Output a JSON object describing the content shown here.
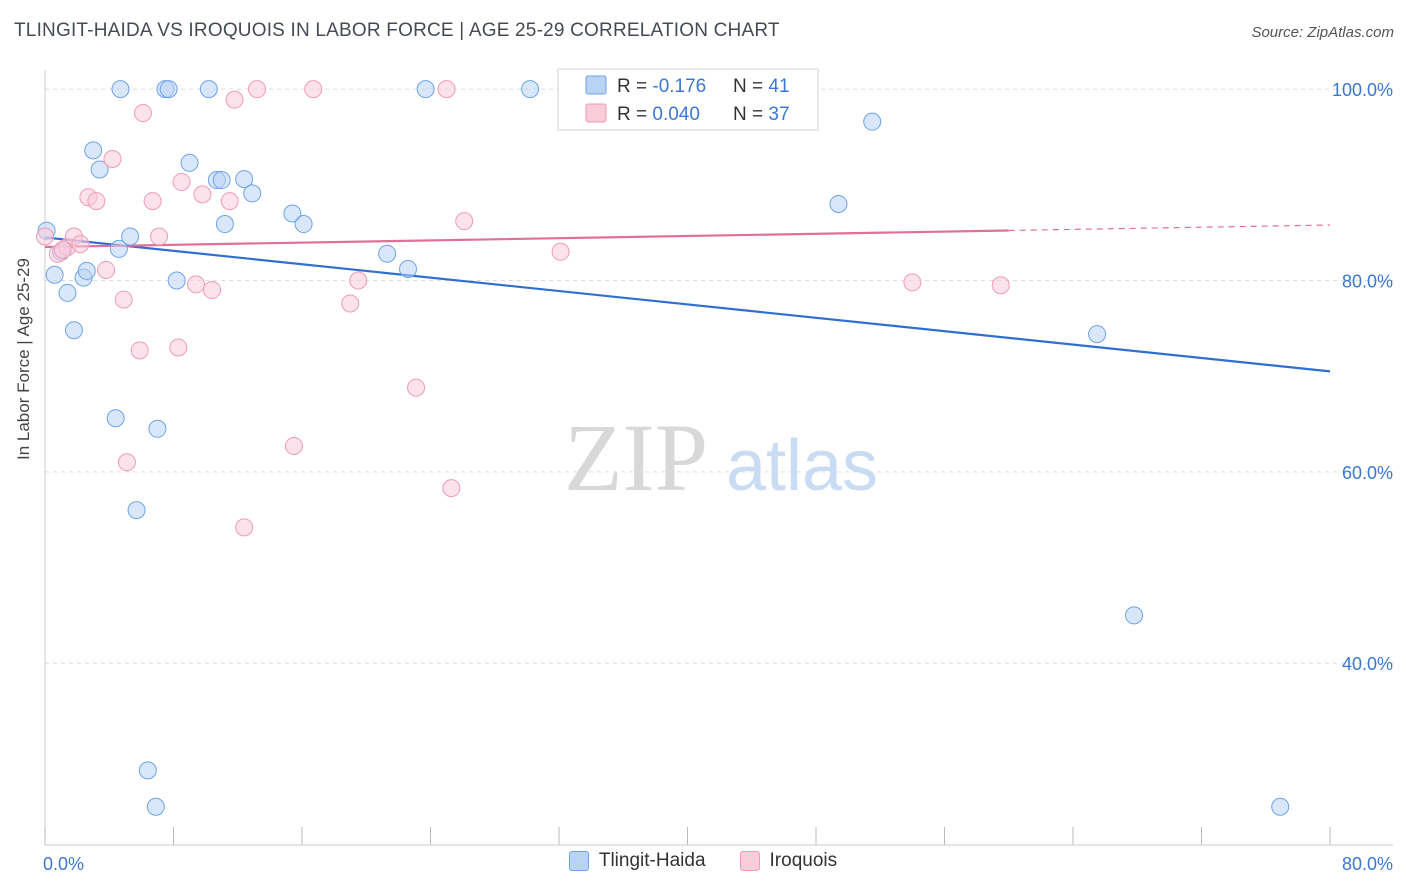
{
  "header": {
    "title": "TLINGIT-HAIDA VS IROQUOIS IN LABOR FORCE | AGE 25-29 CORRELATION CHART",
    "source": "Source: ZipAtlas.com"
  },
  "watermark": {
    "zip": "ZIP",
    "atlas": "atlas"
  },
  "legend_box": {
    "rows": [
      {
        "r_label": "R = ",
        "r_value": "-0.176",
        "n_label": "N = ",
        "n_value": "41"
      },
      {
        "r_label": "R = ",
        "r_value": "0.040",
        "n_label": "N = ",
        "n_value": "37"
      }
    ]
  },
  "chart_data": {
    "type": "scatter",
    "title": "TLINGIT-HAIDA VS IROQUOIS IN LABOR FORCE | AGE 25-29 CORRELATION CHART",
    "xlabel": "",
    "ylabel": "In Labor Force | Age 25-29",
    "xlim": [
      0,
      80
    ],
    "ylim": [
      21,
      102
    ],
    "x_tick_labels": [
      "0.0%",
      "80.0%"
    ],
    "y_ticks": [
      40,
      60,
      80,
      100
    ],
    "y_tick_labels": [
      "40.0%",
      "60.0%",
      "80.0%",
      "100.0%"
    ],
    "grid": true,
    "legend_position": "bottom",
    "colors": {
      "tlingit": "#6fa3e8",
      "iroquois": "#f09bb5",
      "tlingit_line": "#2f6fd0",
      "iroquois_line": "#e0709a",
      "axis_text": "#3b78d0"
    },
    "series": [
      {
        "name": "Tlingit-Haida",
        "r": -0.176,
        "n": 41,
        "trend": {
          "x": [
            0,
            80
          ],
          "y": [
            84.5,
            70.5
          ],
          "dashed_from": null
        },
        "points": [
          [
            0.1,
            85.2
          ],
          [
            0.6,
            80.6
          ],
          [
            1.4,
            78.7
          ],
          [
            1.8,
            74.8
          ],
          [
            3.0,
            93.6
          ],
          [
            3.4,
            91.6
          ],
          [
            2.4,
            80.3
          ],
          [
            2.6,
            81.0
          ],
          [
            4.6,
            83.3
          ],
          [
            4.4,
            65.6
          ],
          [
            5.3,
            84.6
          ],
          [
            4.7,
            100.0
          ],
          [
            5.7,
            56.0
          ],
          [
            6.4,
            28.8
          ],
          [
            6.9,
            25.0
          ],
          [
            7.0,
            64.5
          ],
          [
            7.5,
            100.0
          ],
          [
            7.7,
            100.0
          ],
          [
            8.2,
            80.0
          ],
          [
            9.0,
            92.3
          ],
          [
            10.2,
            100.0
          ],
          [
            10.7,
            90.5
          ],
          [
            11.0,
            90.5
          ],
          [
            11.2,
            85.9
          ],
          [
            12.4,
            90.6
          ],
          [
            12.9,
            89.1
          ],
          [
            15.4,
            87.0
          ],
          [
            16.1,
            85.9
          ],
          [
            21.3,
            82.8
          ],
          [
            22.6,
            81.2
          ],
          [
            23.7,
            100.0
          ],
          [
            30.2,
            100.0
          ],
          [
            35.3,
            100.0
          ],
          [
            36.2,
            100.0
          ],
          [
            44.4,
            96.8
          ],
          [
            49.4,
            88.0
          ],
          [
            51.5,
            96.6
          ],
          [
            65.5,
            74.4
          ],
          [
            67.8,
            45.0
          ],
          [
            76.9,
            25.0
          ],
          [
            1.0,
            83.0
          ]
        ]
      },
      {
        "name": "Iroquois",
        "r": 0.04,
        "n": 37,
        "trend": {
          "x": [
            0,
            80
          ],
          "y": [
            83.5,
            85.8
          ],
          "dashed_from": 60.0
        },
        "points": [
          [
            0.0,
            84.6
          ],
          [
            0.8,
            82.8
          ],
          [
            1.4,
            83.5
          ],
          [
            1.8,
            84.6
          ],
          [
            2.2,
            83.8
          ],
          [
            2.7,
            88.7
          ],
          [
            3.2,
            88.3
          ],
          [
            3.8,
            81.1
          ],
          [
            4.2,
            92.7
          ],
          [
            4.9,
            78.0
          ],
          [
            5.1,
            61.0
          ],
          [
            5.9,
            72.7
          ],
          [
            6.1,
            97.5
          ],
          [
            6.7,
            88.3
          ],
          [
            7.1,
            84.6
          ],
          [
            8.3,
            73.0
          ],
          [
            8.5,
            90.3
          ],
          [
            9.4,
            79.6
          ],
          [
            9.8,
            89.0
          ],
          [
            10.4,
            79.0
          ],
          [
            11.5,
            88.3
          ],
          [
            11.8,
            98.9
          ],
          [
            12.4,
            54.2
          ],
          [
            13.2,
            100.0
          ],
          [
            15.5,
            62.7
          ],
          [
            16.7,
            100.0
          ],
          [
            19.0,
            77.6
          ],
          [
            19.5,
            80.0
          ],
          [
            23.1,
            68.8
          ],
          [
            25.0,
            100.0
          ],
          [
            25.3,
            58.3
          ],
          [
            26.1,
            86.2
          ],
          [
            32.1,
            83.0
          ],
          [
            34.7,
            100.0
          ],
          [
            54.0,
            79.8
          ],
          [
            59.5,
            79.5
          ],
          [
            1.1,
            83.2
          ]
        ]
      }
    ]
  }
}
